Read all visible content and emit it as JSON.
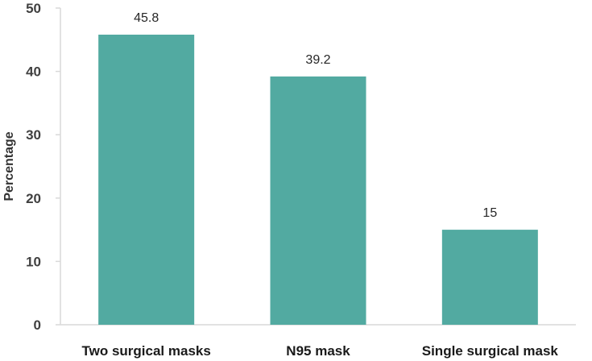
{
  "chart_data": {
    "type": "bar",
    "title": "",
    "xlabel": "",
    "ylabel": "Percentage",
    "categories": [
      "Two surgical masks",
      "N95 mask",
      "Single surgical mask"
    ],
    "values": [
      45.8,
      39.2,
      15
    ],
    "value_labels": [
      "45.8",
      "39.2",
      "15"
    ],
    "ylim": [
      0,
      50
    ],
    "yticks": [
      0,
      10,
      20,
      30,
      40,
      50
    ],
    "ytick_labels": [
      "0",
      "10",
      "20",
      "30",
      "40",
      "50"
    ],
    "grid": false,
    "legend": "none",
    "bar_color": "#52aaa1",
    "axis_color": "#d9d9d9"
  }
}
